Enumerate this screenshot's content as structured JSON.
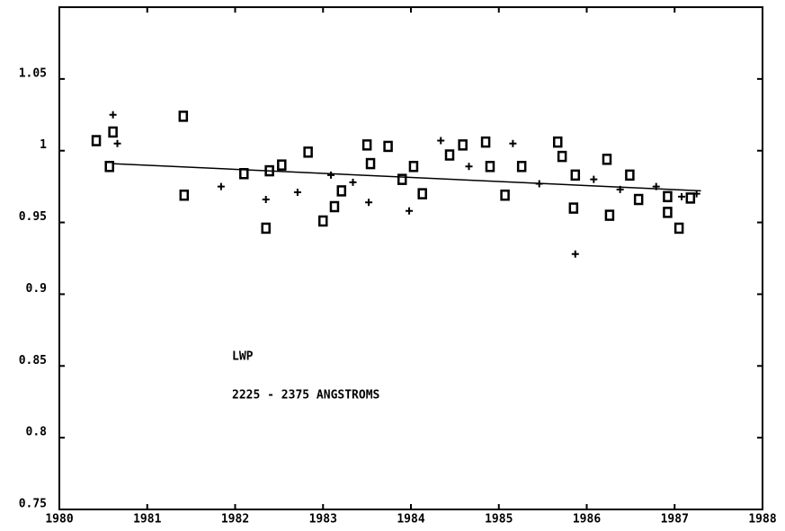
{
  "chart_data": {
    "type": "scatter",
    "annotations": [
      "LWP",
      "2225 - 2375 ANGSTROMS"
    ],
    "x": [
      1980.42,
      1980.61,
      1980.61,
      1980.57,
      1980.66,
      1981.41,
      1981.42,
      1981.84,
      1982.1,
      1982.35,
      1982.35,
      1982.39,
      1982.53,
      1982.71,
      1982.83,
      1983.0,
      1983.09,
      1983.13,
      1983.21,
      1983.34,
      1983.5,
      1983.54,
      1983.52,
      1983.74,
      1983.9,
      1983.98,
      1984.03,
      1984.13,
      1984.34,
      1984.44,
      1984.59,
      1984.66,
      1984.85,
      1984.9,
      1985.16,
      1985.07,
      1985.26,
      1985.46,
      1985.67,
      1985.72,
      1985.87,
      1985.85,
      1985.87,
      1986.08,
      1986.23,
      1986.26,
      1986.38,
      1986.49,
      1986.59,
      1986.79,
      1986.92,
      1987.05,
      1987.08,
      1986.92,
      1987.18,
      1987.25
    ],
    "y": [
      1.007,
      1.025,
      1.013,
      0.989,
      1.005,
      1.024,
      0.969,
      0.975,
      0.984,
      0.946,
      0.966,
      0.986,
      0.99,
      0.971,
      0.999,
      0.951,
      0.983,
      0.961,
      0.972,
      0.978,
      1.004,
      0.991,
      0.964,
      1.003,
      0.98,
      0.958,
      0.989,
      0.97,
      1.007,
      0.997,
      1.004,
      0.989,
      1.006,
      0.989,
      1.005,
      0.969,
      0.989,
      0.977,
      1.006,
      0.996,
      0.928,
      0.96,
      0.983,
      0.98,
      0.994,
      0.955,
      0.973,
      0.983,
      0.966,
      0.975,
      0.957,
      0.946,
      0.968,
      0.968,
      0.967,
      0.97
    ],
    "fit": {
      "x": [
        1980.6,
        1987.3
      ],
      "y": [
        0.991,
        0.972
      ]
    },
    "color": "#000000",
    "xlim": [
      1980,
      1988
    ],
    "xticks": [
      1980,
      1981,
      1982,
      1983,
      1984,
      1985,
      1986,
      1987,
      1988
    ],
    "ylim": [
      0.75,
      1.1
    ],
    "yticks": [
      0.75,
      0.8,
      0.85,
      0.9,
      0.95,
      1,
      1.05
    ]
  }
}
